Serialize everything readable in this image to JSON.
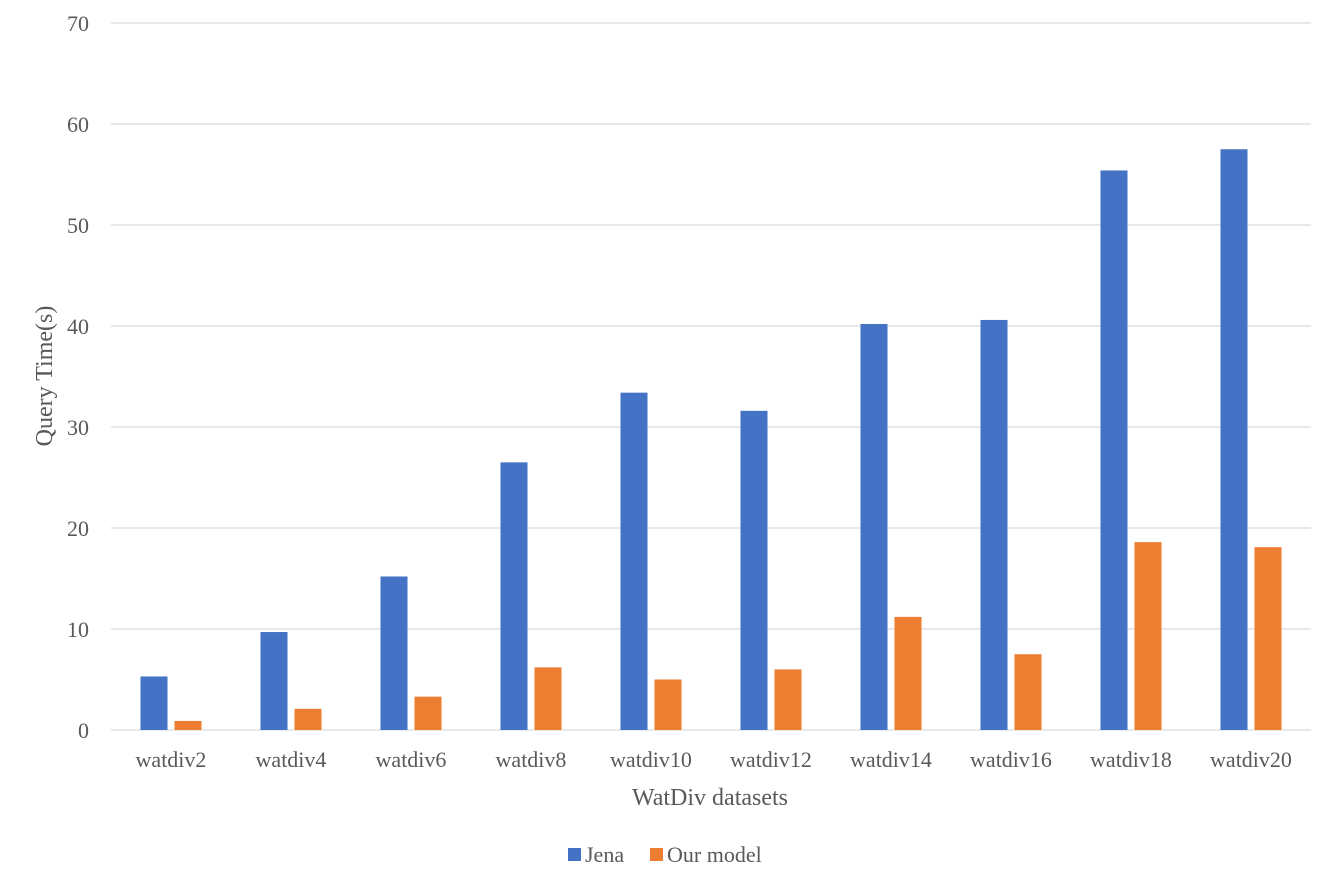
{
  "chart_data": {
    "type": "bar",
    "categories": [
      "watdiv2",
      "watdiv4",
      "watdiv6",
      "watdiv8",
      "watdiv10",
      "watdiv12",
      "watdiv14",
      "watdiv16",
      "watdiv18",
      "watdiv20"
    ],
    "series": [
      {
        "name": "Jena",
        "color": "#4472c4",
        "values": [
          5.3,
          9.7,
          15.2,
          26.5,
          33.4,
          31.6,
          40.2,
          40.6,
          55.4,
          57.5
        ]
      },
      {
        "name": "Our model",
        "color": "#ed7d31",
        "values": [
          0.9,
          2.1,
          3.3,
          6.2,
          5.0,
          6.0,
          11.2,
          7.5,
          18.6,
          18.1
        ]
      }
    ],
    "xlabel": "WatDiv datasets",
    "ylabel": "Query Time(s)",
    "ylim": [
      0,
      70
    ],
    "yticks": [
      0,
      10,
      20,
      30,
      40,
      50,
      60,
      70
    ],
    "grid": true,
    "legend_position": "bottom"
  }
}
